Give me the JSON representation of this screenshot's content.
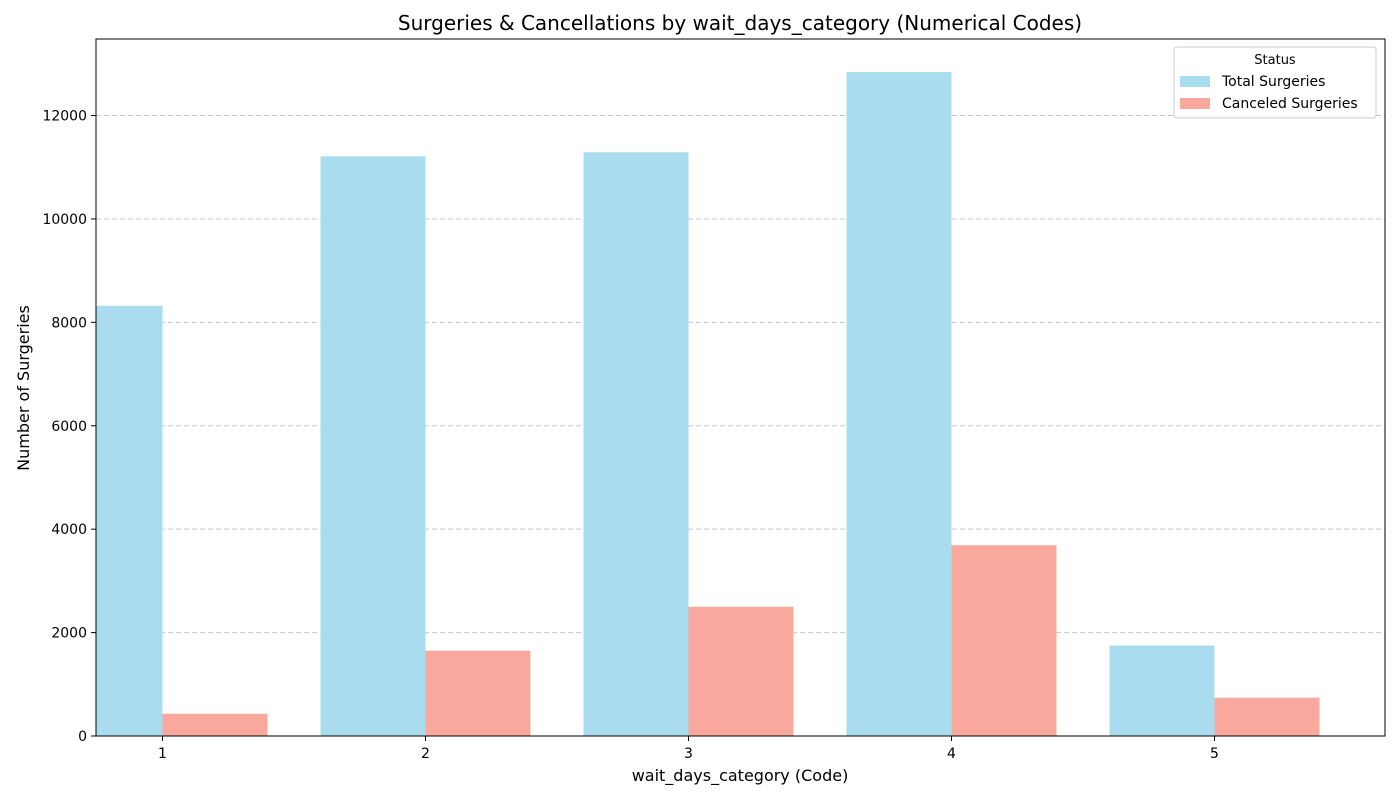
{
  "chart_data": {
    "type": "bar",
    "title": "Surgeries & Cancellations by wait_days_category (Numerical Codes)",
    "xlabel": "wait_days_category (Code)",
    "ylabel": "Number of Surgeries",
    "categories": [
      "1",
      "2",
      "3",
      "4",
      "5"
    ],
    "series": [
      {
        "name": "Total Surgeries",
        "values": [
          8320,
          11210,
          11290,
          12840,
          1750
        ],
        "color": "#a8dcee"
      },
      {
        "name": "Canceled Surgeries",
        "values": [
          430,
          1650,
          2500,
          3690,
          740
        ],
        "color": "#f9a89d"
      }
    ],
    "ylim": [
      0,
      13480
    ],
    "yticks": [
      0,
      2000,
      4000,
      6000,
      8000,
      10000,
      12000
    ],
    "grid": "y-dashed",
    "legend": {
      "title": "Status",
      "placement": "top-right"
    }
  }
}
